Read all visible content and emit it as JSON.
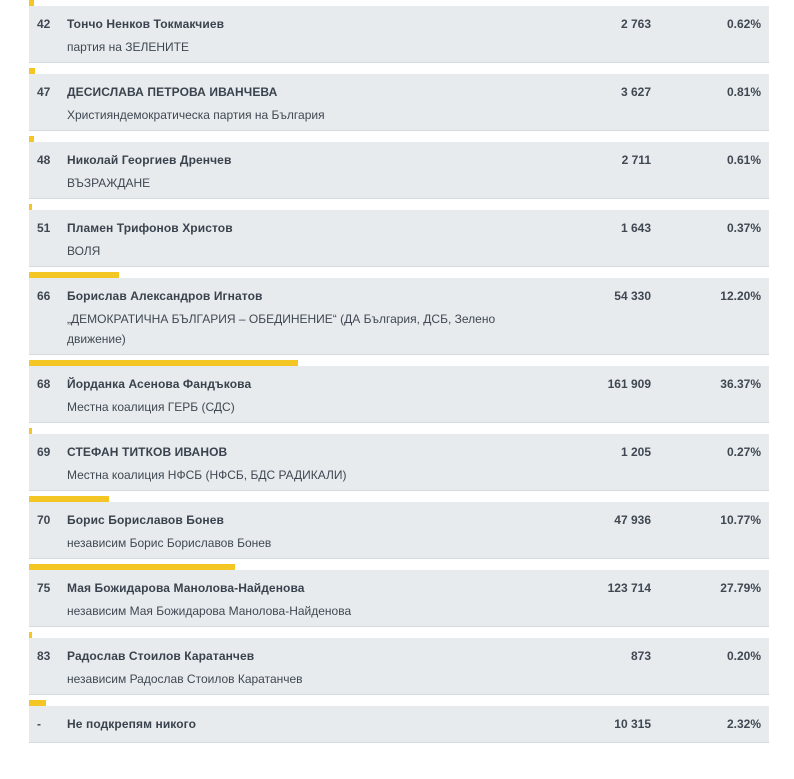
{
  "accent_color": "#f3c623",
  "candidates": [
    {
      "number": "42",
      "name": "Тончо Ненков Токмакчиев",
      "party": "партия на ЗЕЛЕНИТЕ",
      "votes": "2 763",
      "percent": "0.62%",
      "share": 0.0062
    },
    {
      "number": "47",
      "name": "ДЕСИСЛАВА ПЕТРОВА ИВАНЧЕВА",
      "party": "Християндемократическа партия на България",
      "votes": "3 627",
      "percent": "0.81%",
      "share": 0.0081
    },
    {
      "number": "48",
      "name": "Николай Георгиев Дренчев",
      "party": "ВЪЗРАЖДАНЕ",
      "votes": "2 711",
      "percent": "0.61%",
      "share": 0.0061
    },
    {
      "number": "51",
      "name": "Пламен Трифонов Христов",
      "party": "ВОЛЯ",
      "votes": "1 643",
      "percent": "0.37%",
      "share": 0.0037
    },
    {
      "number": "66",
      "name": "Борислав Александров Игнатов",
      "party": "„ДЕМОКРАТИЧНА БЪЛГАРИЯ – ОБЕДИНЕНИЕ“ (ДА България, ДСБ, Зелено движение)",
      "votes": "54 330",
      "percent": "12.20%",
      "share": 0.122
    },
    {
      "number": "68",
      "name": "Йорданка Асенова Фандъкова",
      "party": "Местна коалиция ГЕРБ (СДС)",
      "votes": "161 909",
      "percent": "36.37%",
      "share": 0.3637
    },
    {
      "number": "69",
      "name": "СТЕФАН ТИТКОВ ИВАНОВ",
      "party": "Местна коалиция НФСБ (НФСБ, БДС РАДИКАЛИ)",
      "votes": "1 205",
      "percent": "0.27%",
      "share": 0.0027
    },
    {
      "number": "70",
      "name": "Борис Бориславов Бонев",
      "party": "независим Борис Бориславов Бонев",
      "votes": "47 936",
      "percent": "10.77%",
      "share": 0.1077
    },
    {
      "number": "75",
      "name": "Мая Божидарова Манолова-Найденова",
      "party": "независим Мая Божидарова Манолова-Найденова",
      "votes": "123 714",
      "percent": "27.79%",
      "share": 0.2779
    },
    {
      "number": "83",
      "name": "Радослав Стоилов Каратанчев",
      "party": "независим Радослав Стоилов Каратанчев",
      "votes": "873",
      "percent": "0.20%",
      "share": 0.002
    },
    {
      "number": "-",
      "name": "Не подкрепям никого",
      "party": "",
      "votes": "10 315",
      "percent": "2.32%",
      "share": 0.0232
    }
  ]
}
